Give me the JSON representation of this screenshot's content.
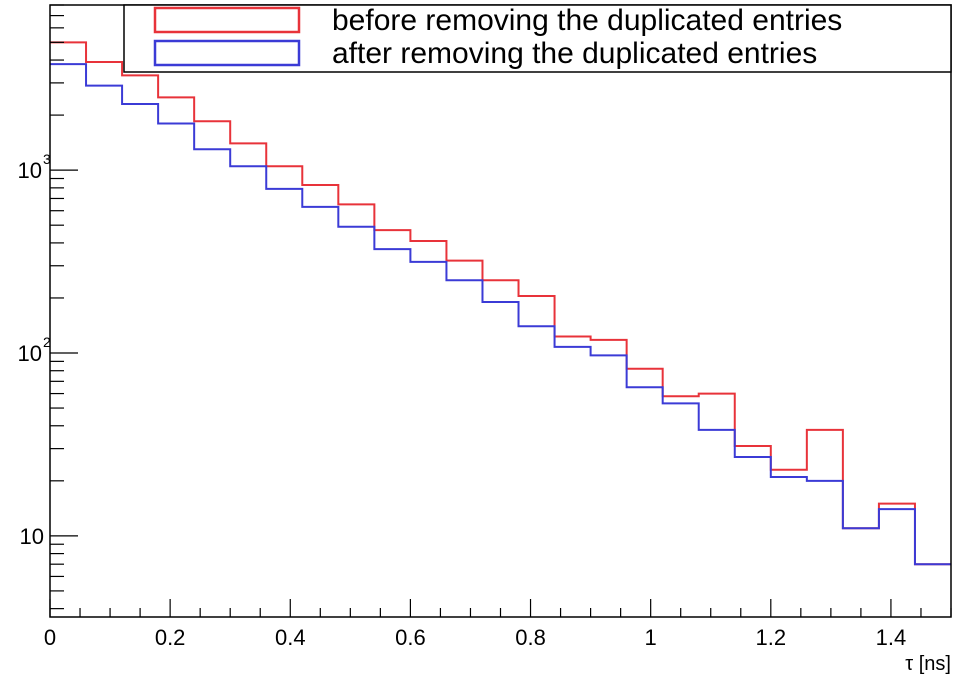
{
  "chart_data": {
    "type": "line",
    "step": true,
    "title": "",
    "xlabel": "τ [ns]",
    "ylabel": "",
    "xlim": [
      0,
      1.5
    ],
    "ylim": [
      3.6,
      8000
    ],
    "yscale": "log",
    "grid": false,
    "legend_position": "top-right",
    "x_ticks": [
      0,
      0.2,
      0.4,
      0.6,
      0.8,
      1,
      1.2,
      1.4
    ],
    "x_tick_labels": [
      "0",
      "0.2",
      "0.4",
      "0.6",
      "0.8",
      "1",
      "1.2",
      "1.4"
    ],
    "y_ticks": [
      {
        "value": 10,
        "base": "10",
        "exp": ""
      },
      {
        "value": 100,
        "base": "10",
        "exp": "2"
      },
      {
        "value": 1000,
        "base": "10",
        "exp": "3"
      }
    ],
    "bin_edges": [
      0,
      0.06,
      0.12,
      0.18,
      0.24,
      0.3,
      0.36,
      0.42,
      0.48,
      0.54,
      0.6,
      0.66,
      0.72,
      0.78,
      0.84,
      0.9,
      0.96,
      1.02,
      1.08,
      1.14,
      1.2,
      1.26,
      1.32,
      1.38,
      1.44,
      1.5
    ],
    "series": [
      {
        "name": "before removing the duplicated entries",
        "color": "#e8333a",
        "values": [
          5000,
          3900,
          3300,
          2500,
          1850,
          1400,
          1050,
          830,
          650,
          470,
          410,
          320,
          250,
          205,
          123,
          118,
          82,
          58,
          60,
          31,
          23,
          38,
          11,
          15,
          7
        ]
      },
      {
        "name": "after removing the duplicated entries",
        "color": "#3b3bd6",
        "values": [
          3800,
          2900,
          2300,
          1800,
          1300,
          1050,
          790,
          630,
          490,
          370,
          315,
          250,
          190,
          140,
          108,
          97,
          65,
          53,
          38,
          27,
          21,
          20,
          11,
          14,
          7
        ]
      }
    ]
  }
}
